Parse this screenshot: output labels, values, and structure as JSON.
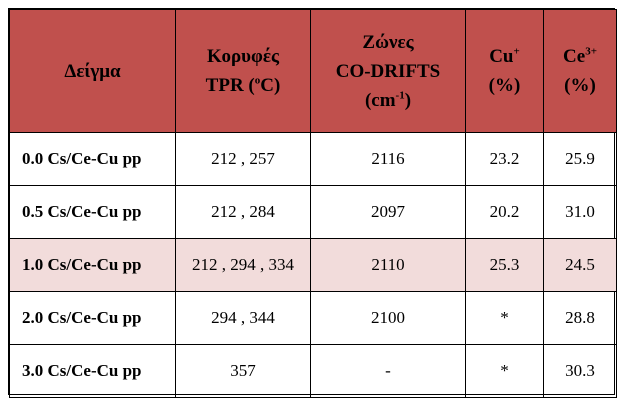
{
  "header": {
    "sample": "Δείγμα",
    "tpr_line1": "Κορυφές",
    "tpr_line2_pre": "TPR (",
    "tpr_sup": "o",
    "tpr_line2_post": "C)",
    "drifts_line1": "Ζώνες",
    "drifts_line2": "CO-DRIFTS",
    "drifts_line3_pre": "(cm",
    "drifts_sup": "-1",
    "drifts_line3_post": ")",
    "cu_base": "Cu",
    "cu_sup": "+",
    "cu_unit": "(%)",
    "ce_base": "Ce",
    "ce_sup": "3+",
    "ce_unit": "(%)"
  },
  "rows": [
    {
      "sample": "0.0 Cs/Ce-Cu pp",
      "tpr": "212 , 257",
      "drifts": "2116",
      "cu": "23.2",
      "ce": "25.9"
    },
    {
      "sample": "0.5 Cs/Ce-Cu pp",
      "tpr": "212 , 284",
      "drifts": "2097",
      "cu": "20.2",
      "ce": "31.0"
    },
    {
      "sample": "1.0 Cs/Ce-Cu pp",
      "tpr": "212 , 294 , 334",
      "drifts": "2110",
      "cu": "25.3",
      "ce": "24.5"
    },
    {
      "sample": "2.0 Cs/Ce-Cu pp",
      "tpr": "294 , 344",
      "drifts": "2100",
      "cu": "*",
      "ce": "28.8"
    },
    {
      "sample": "3.0 Cs/Ce-Cu pp",
      "tpr": "357",
      "drifts": "-",
      "cu": "*",
      "ce": "30.3"
    }
  ],
  "colors": {
    "header_bg": "#c0504d",
    "highlight_row_bg": "#f2dcdb",
    "border": "#000000"
  }
}
